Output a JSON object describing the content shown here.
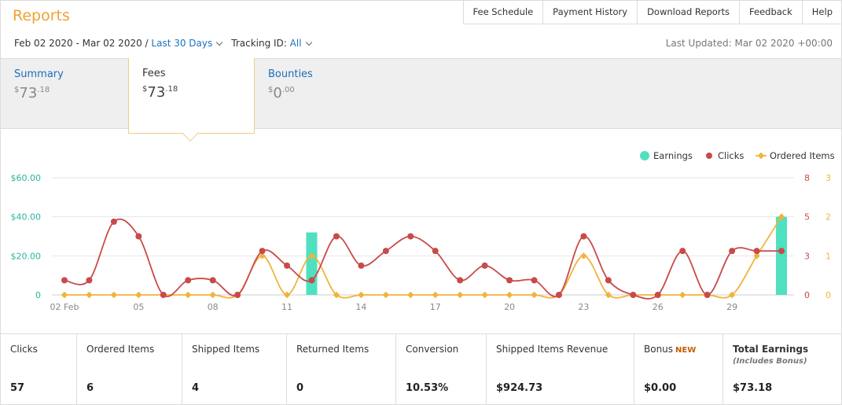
{
  "header": {
    "title": "Reports",
    "nav": [
      "Fee Schedule",
      "Payment History",
      "Download Reports",
      "Feedback",
      "Help"
    ]
  },
  "filters": {
    "date_range": "Feb 02 2020 - Mar 02 2020 /",
    "period": "Last 30 Days",
    "tracking_label": "Tracking ID:",
    "tracking_value": "All",
    "last_updated": "Last Updated: Mar 02 2020 +00:00"
  },
  "tabs": [
    {
      "label": "Summary",
      "currency": "$",
      "whole": "73",
      "cents": ".18"
    },
    {
      "label": "Fees",
      "currency": "$",
      "whole": "73",
      "cents": ".18"
    },
    {
      "label": "Bounties",
      "currency": "$",
      "whole": "0",
      "cents": ".00"
    }
  ],
  "chart_data": {
    "type": "line",
    "legend": [
      "Earnings",
      "Clicks",
      "Ordered Items"
    ],
    "legend_position": "top-right",
    "colors": {
      "earnings": "#4fe0c0",
      "clicks": "#c94a4a",
      "ordered": "#f0b43c",
      "left_axis": "#2ab5a0"
    },
    "x_tick_labels": [
      "02 Feb",
      "05",
      "08",
      "11",
      "14",
      "17",
      "20",
      "23",
      "26",
      "29"
    ],
    "y_left_ticks": [
      "$60.00",
      "$40.00",
      "$20.00",
      "0"
    ],
    "y_right_clicks_ticks": [
      "8",
      "5",
      "3",
      "0"
    ],
    "y_right_items_ticks": [
      "3",
      "2",
      "1",
      "0"
    ],
    "y_left_range": [
      0,
      60
    ],
    "y_right_clicks_range": [
      0,
      8
    ],
    "y_right_items_range": [
      0,
      3
    ],
    "grid": true,
    "days": 30,
    "series": [
      {
        "name": "Earnings",
        "values": [
          0,
          0,
          0,
          0,
          0,
          0,
          0,
          0,
          0,
          0,
          32,
          0,
          0,
          0,
          0,
          0,
          0,
          0,
          0,
          0,
          0,
          0,
          0,
          0,
          0,
          0,
          0,
          0,
          0,
          40
        ]
      },
      {
        "name": "Clicks",
        "values": [
          1,
          1,
          5,
          4,
          0,
          1,
          1,
          0,
          3,
          2,
          1,
          4,
          2,
          3,
          4,
          3,
          1,
          2,
          1,
          1,
          0,
          4,
          1,
          0,
          0,
          3,
          0,
          3,
          3,
          3
        ]
      },
      {
        "name": "Ordered Items",
        "values": [
          0,
          0,
          0,
          0,
          0,
          0,
          0,
          0,
          1,
          0,
          1,
          0,
          0,
          0,
          0,
          0,
          0,
          0,
          0,
          0,
          0,
          1,
          0,
          0,
          0,
          0,
          0,
          0,
          1,
          2
        ]
      }
    ]
  },
  "stats": [
    {
      "label": "Clicks",
      "value": "57"
    },
    {
      "label": "Ordered Items",
      "value": "6"
    },
    {
      "label": "Shipped Items",
      "value": "4"
    },
    {
      "label": "Returned Items",
      "value": "0"
    },
    {
      "label": "Conversion",
      "value": "10.53%"
    },
    {
      "label": "Shipped Items Revenue",
      "value": "$924.73"
    },
    {
      "label": "Bonus",
      "badge": "NEW",
      "value": "$0.00"
    },
    {
      "label": "Total Earnings",
      "note": "(Includes Bonus)",
      "value": "$73.18"
    }
  ]
}
